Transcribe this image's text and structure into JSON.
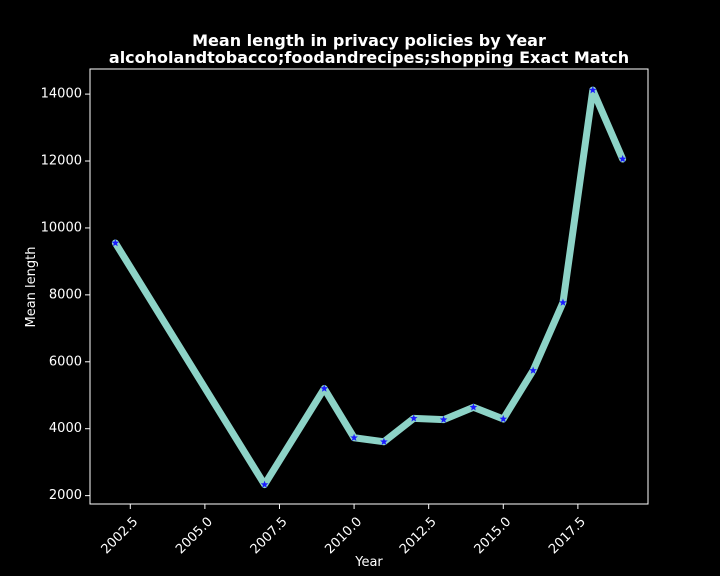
{
  "chart_data": {
    "type": "line",
    "title": "Mean length in privacy policies by Year",
    "subtitle": "alcoholandtobacco;foodandrecipes;shopping Exact Match",
    "xlabel": "Year",
    "ylabel": "Mean length",
    "xlim": [
      2001.15,
      2019.85
    ],
    "ylim": [
      1750,
      14750
    ],
    "xticks": [
      2002.5,
      2005.0,
      2007.5,
      2010.0,
      2012.5,
      2015.0,
      2017.5
    ],
    "xtick_labels": [
      "2002.5",
      "2005.0",
      "2007.5",
      "2010.0",
      "2012.5",
      "2015.0",
      "2017.5"
    ],
    "yticks": [
      2000,
      4000,
      6000,
      8000,
      10000,
      12000,
      14000
    ],
    "ytick_labels": [
      "2000",
      "4000",
      "6000",
      "8000",
      "10000",
      "12000",
      "14000"
    ],
    "grid": false,
    "colors": {
      "line": "#8dd3c7",
      "marker": "#1a1aff",
      "background": "#000000",
      "foreground": "#ffffff"
    },
    "series": [
      {
        "x": [
          2002,
          2007,
          2009,
          2010,
          2011,
          2012,
          2013,
          2014,
          2015,
          2016,
          2017,
          2018,
          2019
        ],
        "values": [
          9550,
          2330,
          5200,
          3730,
          3610,
          4310,
          4270,
          4640,
          4290,
          5740,
          7770,
          14120,
          12060
        ]
      }
    ]
  }
}
